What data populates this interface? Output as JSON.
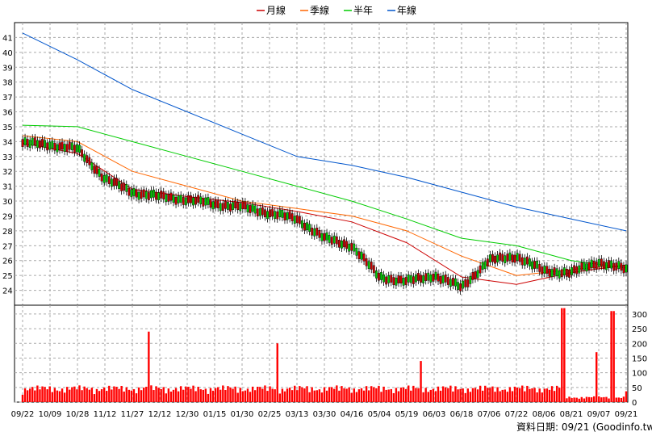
{
  "chart_data": {
    "type": "candlestick+line+bar",
    "legend": [
      {
        "name": "月線",
        "color": "#cc0000"
      },
      {
        "name": "季線",
        "color": "#ff6600"
      },
      {
        "name": "半年",
        "color": "#00cc00"
      },
      {
        "name": "年線",
        "color": "#0055cc"
      }
    ],
    "x_labels": [
      "09/22",
      "10/09",
      "10/28",
      "11/12",
      "11/27",
      "12/12",
      "12/30",
      "01/15",
      "01/30",
      "02/25",
      "03/13",
      "03/30",
      "04/16",
      "05/04",
      "05/19",
      "06/03",
      "06/18",
      "07/06",
      "07/22",
      "08/06",
      "08/21",
      "09/07",
      "09/21"
    ],
    "price_axis": {
      "ylim": [
        23,
        42
      ],
      "ticks": [
        24,
        25,
        26,
        27,
        28,
        29,
        30,
        31,
        32,
        33,
        34,
        35,
        36,
        37,
        38,
        39,
        40,
        41
      ]
    },
    "volume_axis": {
      "ylim": [
        0,
        330
      ],
      "ticks": [
        0,
        50,
        100,
        150,
        200,
        250,
        300
      ]
    },
    "series": {
      "ma_month": {
        "x": [
          0,
          2,
          4,
          6,
          8,
          10,
          12,
          14,
          16,
          18,
          20,
          22
        ],
        "y": [
          33.9,
          33.2,
          30.8,
          30.3,
          29.9,
          29.3,
          28.6,
          27.2,
          24.9,
          24.4,
          25.2,
          25.7
        ]
      },
      "ma_quarter": {
        "x": [
          0,
          2,
          4,
          6,
          8,
          10,
          12,
          14,
          16,
          18,
          20,
          22
        ],
        "y": [
          34.4,
          34.0,
          32.0,
          31.0,
          30.0,
          29.5,
          29.0,
          28.0,
          26.3,
          25.0,
          25.4,
          25.7
        ]
      },
      "ma_half": {
        "x": [
          0,
          2,
          4,
          6,
          8,
          10,
          12,
          14,
          16,
          18,
          20,
          22
        ],
        "y": [
          35.1,
          35.0,
          34.0,
          33.0,
          32.0,
          31.0,
          30.0,
          28.8,
          27.5,
          27.0,
          26.0,
          25.5
        ]
      },
      "ma_year": {
        "x": [
          0,
          2,
          4,
          6,
          8,
          10,
          12,
          14,
          16,
          18,
          20,
          22
        ],
        "y": [
          41.3,
          39.5,
          37.5,
          36.0,
          34.5,
          33.0,
          32.4,
          31.6,
          30.6,
          29.6,
          28.8,
          28.0
        ]
      },
      "price_path": {
        "x": [
          0,
          1,
          2,
          3,
          4,
          5,
          6,
          7,
          8,
          9,
          10,
          11,
          12,
          13,
          14,
          15,
          16,
          17,
          18,
          19,
          20,
          21,
          22
        ],
        "y": [
          33.9,
          33.8,
          33.5,
          31.5,
          30.6,
          30.3,
          30.1,
          29.8,
          29.6,
          29.2,
          28.8,
          27.5,
          27.0,
          24.9,
          24.6,
          25.0,
          24.2,
          26.0,
          26.3,
          25.3,
          25.2,
          25.9,
          25.4
        ]
      },
      "volume_spikes": [
        {
          "x": 4.6,
          "v": 240
        },
        {
          "x": 9.3,
          "v": 200
        },
        {
          "x": 19.7,
          "v": 320
        },
        {
          "x": 21.5,
          "v": 310
        },
        {
          "x": 20.9,
          "v": 170
        },
        {
          "x": 14.5,
          "v": 140
        }
      ],
      "volume_base": 25
    }
  },
  "footer": {
    "source": "資料日期: 09/21  (Goodinfo.tw)"
  }
}
